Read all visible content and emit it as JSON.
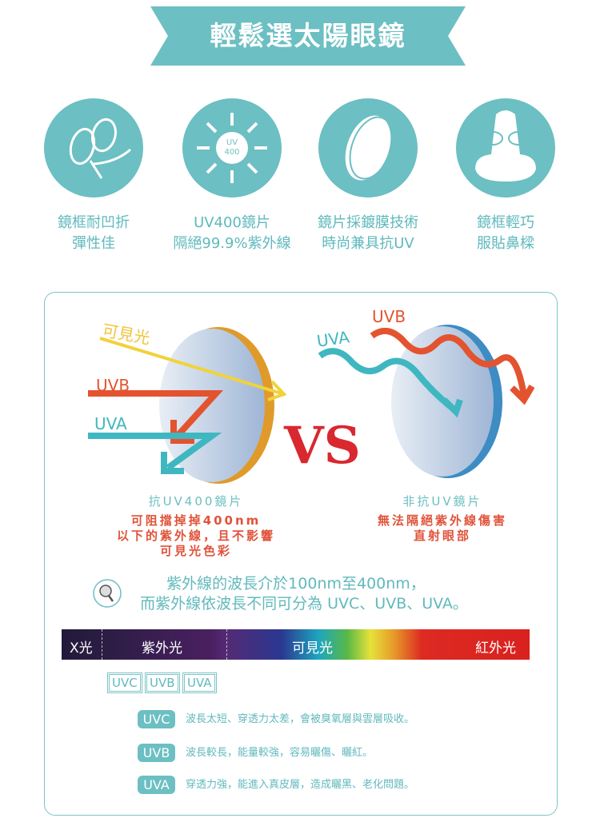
{
  "title": "輕鬆選太陽眼鏡",
  "features": [
    {
      "icon": "flexible-glasses-icon",
      "line1": "鏡框耐凹折",
      "line2": "彈性佳"
    },
    {
      "icon": "sun-uv400-icon",
      "badge": "UV\n400",
      "line1": "UV400鏡片",
      "line2": "隔絕99.9%紫外線"
    },
    {
      "icon": "coated-lens-icon",
      "line1": "鏡片採鍍膜技術",
      "line2": "時尚兼具抗UV"
    },
    {
      "icon": "nose-fit-icon",
      "line1": "鏡框輕巧",
      "line2": "服貼鼻樑"
    }
  ],
  "compare": {
    "visible_light": "可見光",
    "uvb": "UVB",
    "uva": "UVA",
    "vs": "VS",
    "left_title": "抗UV400鏡片",
    "left_desc": [
      "可阻擋掉掉400nm",
      "以下的紫外線，且不影響",
      "可見光色彩"
    ],
    "right_title": "非抗UV鏡片",
    "right_desc": [
      "無法隔絕紫外線傷害",
      "直射眼部"
    ]
  },
  "info": [
    "紫外線的波長介於100nm至400nm，",
    "而紫外線依波長不同可分為 UVC、UVB、UVA。"
  ],
  "spectrum": {
    "xray": "X光",
    "uv": "紫外光",
    "visible": "可見光",
    "ir": "紅外光"
  },
  "uv_types": [
    "UVC",
    "UVB",
    "UVA"
  ],
  "uv_details": [
    {
      "label": "UVC",
      "text": "波長太短、穿透力太差，會被臭氧層與雲層吸收。"
    },
    {
      "label": "UVB",
      "text": "波長較長，能量較強，容易曬傷、曬紅。"
    },
    {
      "label": "UVA",
      "text": "穿透力強，能進入真皮層，造成曬黑、老化問題。"
    }
  ],
  "colors": {
    "teal": "#6cbfc2",
    "red": "#e0533a",
    "yellow": "#f2d23c",
    "uva": "#3fb7c0",
    "vs": "#d9282f"
  }
}
